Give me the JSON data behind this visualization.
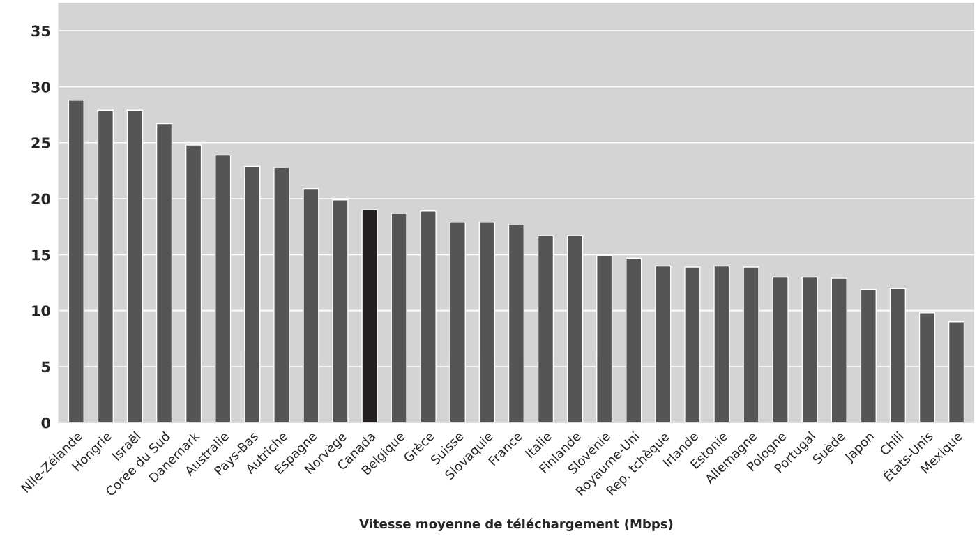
{
  "chart_data": {
    "type": "bar",
    "xlabel": "Vitesse moyenne de téléchargement (Mbps)",
    "categories": [
      "Nlle-Zélande",
      "Hongrie",
      "Israël",
      "Corée du Sud",
      "Danemark",
      "Australie",
      "Pays-Bas",
      "Autriche",
      "Espagne",
      "Norvège",
      "Canada",
      "Belgique",
      "Grèce",
      "Suisse",
      "Slovaquie",
      "France",
      "Italie",
      "Finlande",
      "Slovénie",
      "Royaume-Uni",
      "Rép. tchèque",
      "Irlande",
      "Estonie",
      "Allemagne",
      "Pologne",
      "Portugal",
      "Suède",
      "Japon",
      "Chili",
      "États-Unis",
      "Mexique"
    ],
    "values": [
      28.8,
      27.9,
      27.9,
      26.7,
      24.8,
      23.9,
      22.9,
      22.8,
      20.9,
      19.9,
      19.0,
      18.7,
      18.9,
      17.9,
      17.9,
      17.7,
      16.7,
      16.7,
      14.9,
      14.7,
      14.0,
      13.9,
      14.0,
      13.9,
      13.0,
      13.0,
      12.9,
      11.9,
      12.0,
      9.8,
      9.0
    ],
    "colors": [
      "#555555",
      "#555555",
      "#555555",
      "#555555",
      "#555555",
      "#555555",
      "#555555",
      "#555555",
      "#555555",
      "#555555",
      "#231f20",
      "#555555",
      "#555555",
      "#555555",
      "#555555",
      "#555555",
      "#555555",
      "#555555",
      "#555555",
      "#555555",
      "#555555",
      "#555555",
      "#555555",
      "#555555",
      "#555555",
      "#555555",
      "#555555",
      "#555555",
      "#555555",
      "#555555",
      "#555555"
    ],
    "ylim": [
      0,
      37.5
    ],
    "yticks": [
      0,
      5,
      10,
      15,
      20,
      25,
      30,
      35
    ],
    "grid": "y"
  }
}
